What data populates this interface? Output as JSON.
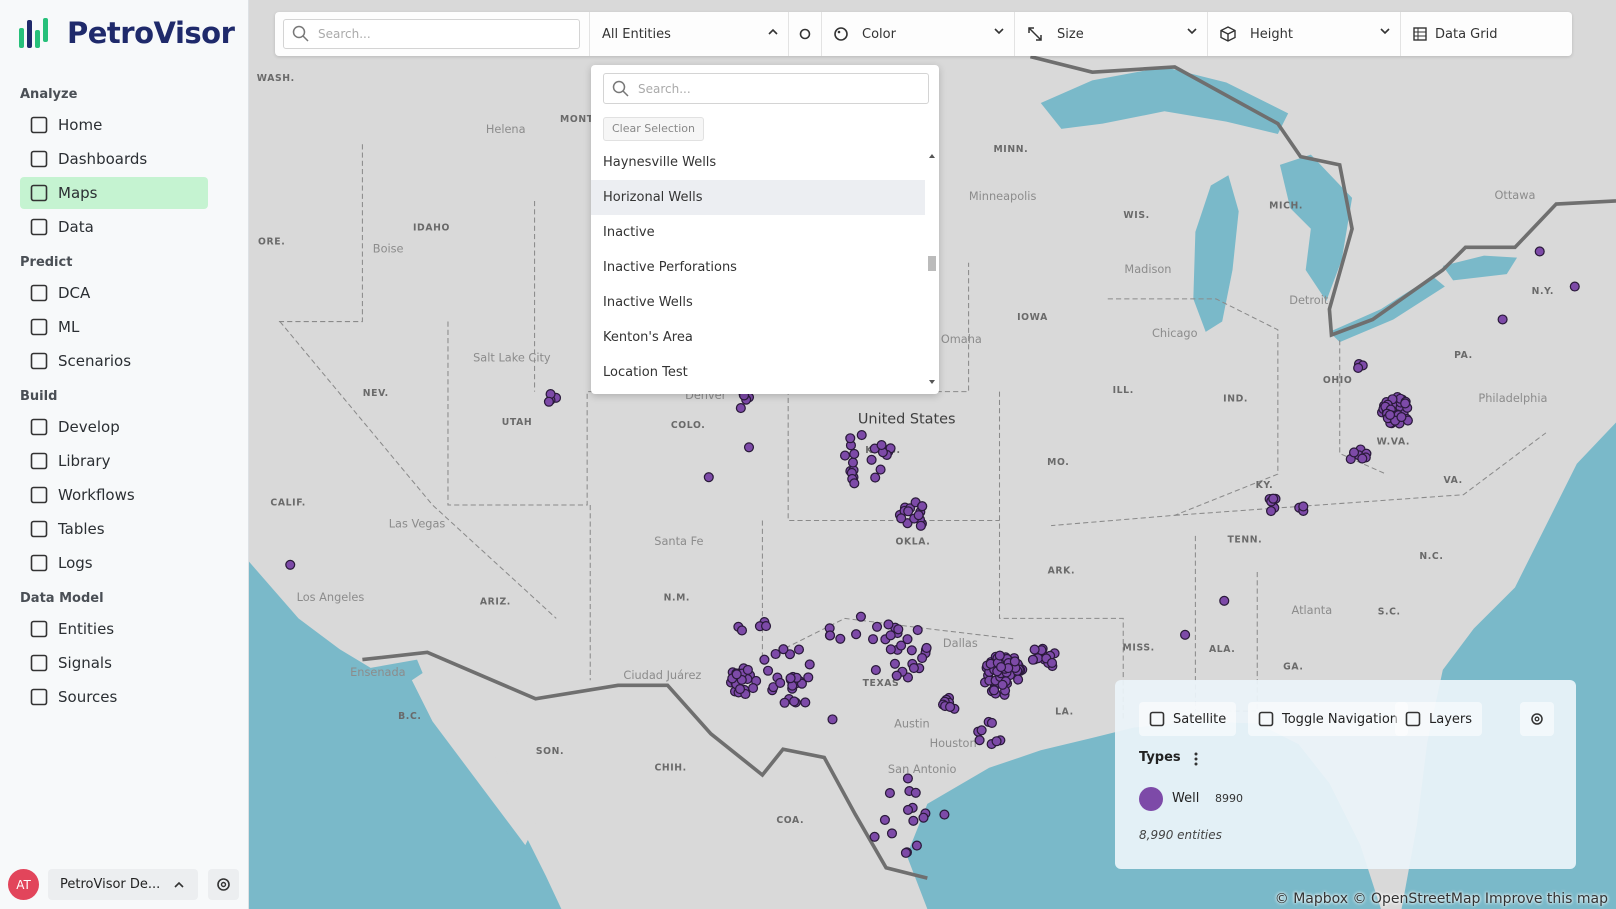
{
  "sidebar": {
    "brand": "PetroVisor",
    "sections": [
      {
        "title": "Analyze",
        "items": [
          {
            "label": "Home"
          },
          {
            "label": "Dashboards"
          },
          {
            "label": "Maps",
            "active": true
          },
          {
            "label": "Data"
          }
        ]
      },
      {
        "title": "Predict",
        "items": [
          {
            "label": "DCA"
          },
          {
            "label": "ML"
          },
          {
            "label": "Scenarios"
          }
        ]
      },
      {
        "title": "Build",
        "items": [
          {
            "label": "Develop"
          },
          {
            "label": "Library"
          },
          {
            "label": "Workflows"
          },
          {
            "label": "Tables"
          },
          {
            "label": "Logs"
          }
        ]
      },
      {
        "title": "Data Model",
        "items": [
          {
            "label": "Entities"
          },
          {
            "label": "Signals"
          },
          {
            "label": "Sources"
          }
        ]
      }
    ],
    "user": {
      "initials": "AT",
      "workspace": "PetroVisor De..."
    }
  },
  "toolbar": {
    "search_placeholder": "Search...",
    "entity_select": "All Entities",
    "color": "Color",
    "size": "Size",
    "height": "Height",
    "data_grid": "Data Grid"
  },
  "dropdown": {
    "search_placeholder": "Search...",
    "clear": "Clear Selection",
    "options": [
      {
        "label": "Haynesville Wells"
      },
      {
        "label": "Horizonal Wells",
        "highlighted": true
      },
      {
        "label": "Inactive"
      },
      {
        "label": "Inactive Perforations"
      },
      {
        "label": "Inactive Wells"
      },
      {
        "label": "Kenton's Area"
      },
      {
        "label": "Location Test"
      }
    ]
  },
  "map": {
    "country_label": "United States",
    "state_labels": [
      "WASH.",
      "MONT",
      "MINN.",
      "WIS.",
      "MICH.",
      "IDAHO",
      "ORE.",
      "N.Y.",
      "IOWA",
      "NEV.",
      "UTAH",
      "COLO.",
      "KANS.",
      "OHIO",
      "PA.",
      "ILL.",
      "IND.",
      "W.VA.",
      "MO.",
      "KY.",
      "VA.",
      "CALIF.",
      "OKLA.",
      "TENN.",
      "N.C.",
      "ARK.",
      "ARIZ.",
      "N.M.",
      "S.C.",
      "MISS.",
      "ALA.",
      "TEXAS",
      "GA.",
      "LA.",
      "B.C.",
      "SON.",
      "CHIH.",
      "COA."
    ],
    "city_labels": [
      "Helena",
      "Minneapolis",
      "Ottawa",
      "Boise",
      "Madison",
      "Detroit",
      "Omaha",
      "Chicago",
      "Salt Lake City",
      "Denver",
      "Philadelphia",
      "Las Vegas",
      "Santa Fe",
      "Los Angeles",
      "Atlanta",
      "Dallas",
      "Ciudad Juárez",
      "Ensenada",
      "Austin",
      "Houston",
      "San Antonio"
    ],
    "attribution": "© Mapbox © OpenStreetMap Improve this map"
  },
  "legend": {
    "buttons": [
      "Satellite",
      "Toggle Navigation",
      "Layers"
    ],
    "types_title": "Types",
    "items": [
      {
        "name": "Well",
        "count": 8990,
        "color": "#7d4aa8"
      }
    ],
    "total": "8,990 entities"
  }
}
